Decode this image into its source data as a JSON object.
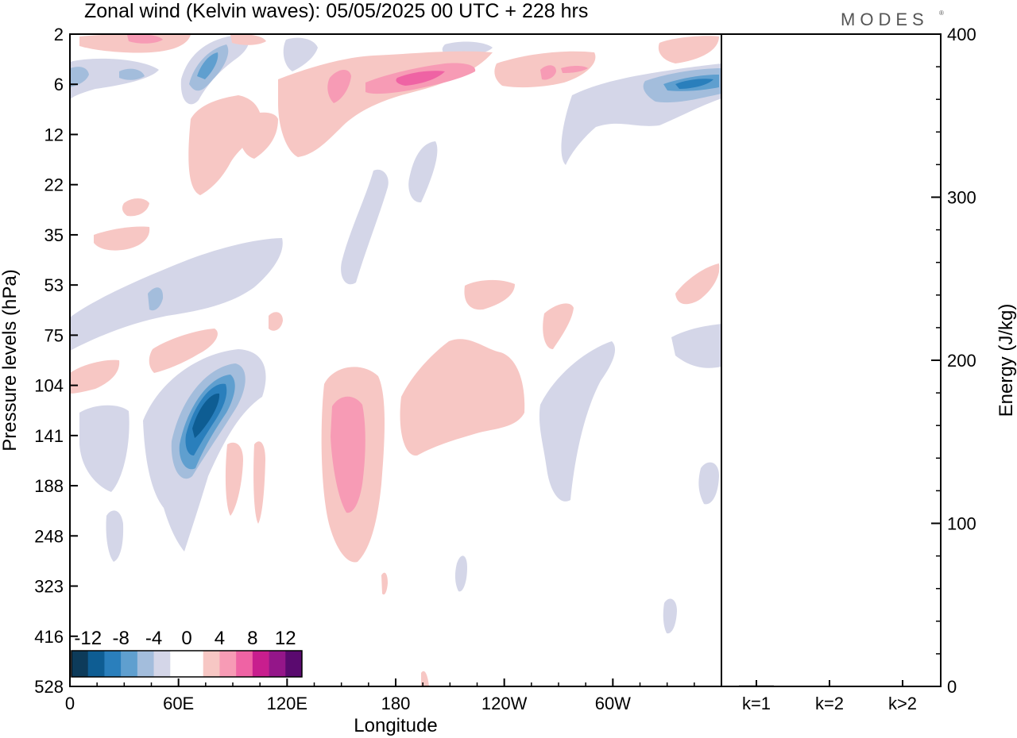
{
  "chart_data": [
    {
      "type": "heatmap",
      "title": "Zonal wind (Kelvin waves):  05/05/2025  00 UTC  + 228 hrs",
      "xlabel": "Longitude",
      "ylabel": "Pressure levels (hPa)",
      "x_ticks": [
        "0",
        "60E",
        "120E",
        "180",
        "120W",
        "60W"
      ],
      "x_tick_values": [
        0,
        60,
        120,
        180,
        240,
        300
      ],
      "xlim": [
        0,
        360
      ],
      "y_ticks": [
        "2",
        "6",
        "12",
        "22",
        "35",
        "53",
        "75",
        "104",
        "141",
        "188",
        "248",
        "323",
        "416",
        "528"
      ],
      "y_scale": "pressure levels (top 2 hPa, bottom 528 hPa)",
      "colorbar": {
        "labels": [
          "-12",
          "-8",
          "-4",
          "0",
          "4",
          "8",
          "12"
        ],
        "colors": [
          "#0d3b5a",
          "#0e5d93",
          "#2a7fbc",
          "#5f9fcf",
          "#a3bddc",
          "#d4d6e8",
          "#ffffff",
          "#ffffff",
          "#f7c7c4",
          "#f79bb5",
          "#ef63a4",
          "#c81e8e",
          "#941689",
          "#5a0a6f"
        ]
      },
      "contours": [
        {
          "name": "neg-strong-104-141",
          "level": -10,
          "lon": 70,
          "plev": 125
        },
        {
          "name": "pos-141-center",
          "level": 6,
          "lon": 153,
          "plev": 150
        },
        {
          "name": "pos-6-hPa-band",
          "level": 8,
          "lon": 190,
          "plev": 6
        },
        {
          "name": "neg-6-hPa-east",
          "level": -8,
          "lon": 345,
          "plev": 6
        },
        {
          "name": "neg-4-hPa-west",
          "level": -8,
          "lon": 75,
          "plev": 4
        }
      ]
    },
    {
      "type": "bar",
      "ylabel": "Energy (J/kg)",
      "ylim": [
        0,
        400
      ],
      "y_ticks": [
        "0",
        "100",
        "200",
        "300",
        "400"
      ],
      "categories": [
        "k=1",
        "k=2",
        "k>2"
      ],
      "values": [
        0.6,
        0.2,
        0.3
      ]
    }
  ],
  "logo": "MODES"
}
